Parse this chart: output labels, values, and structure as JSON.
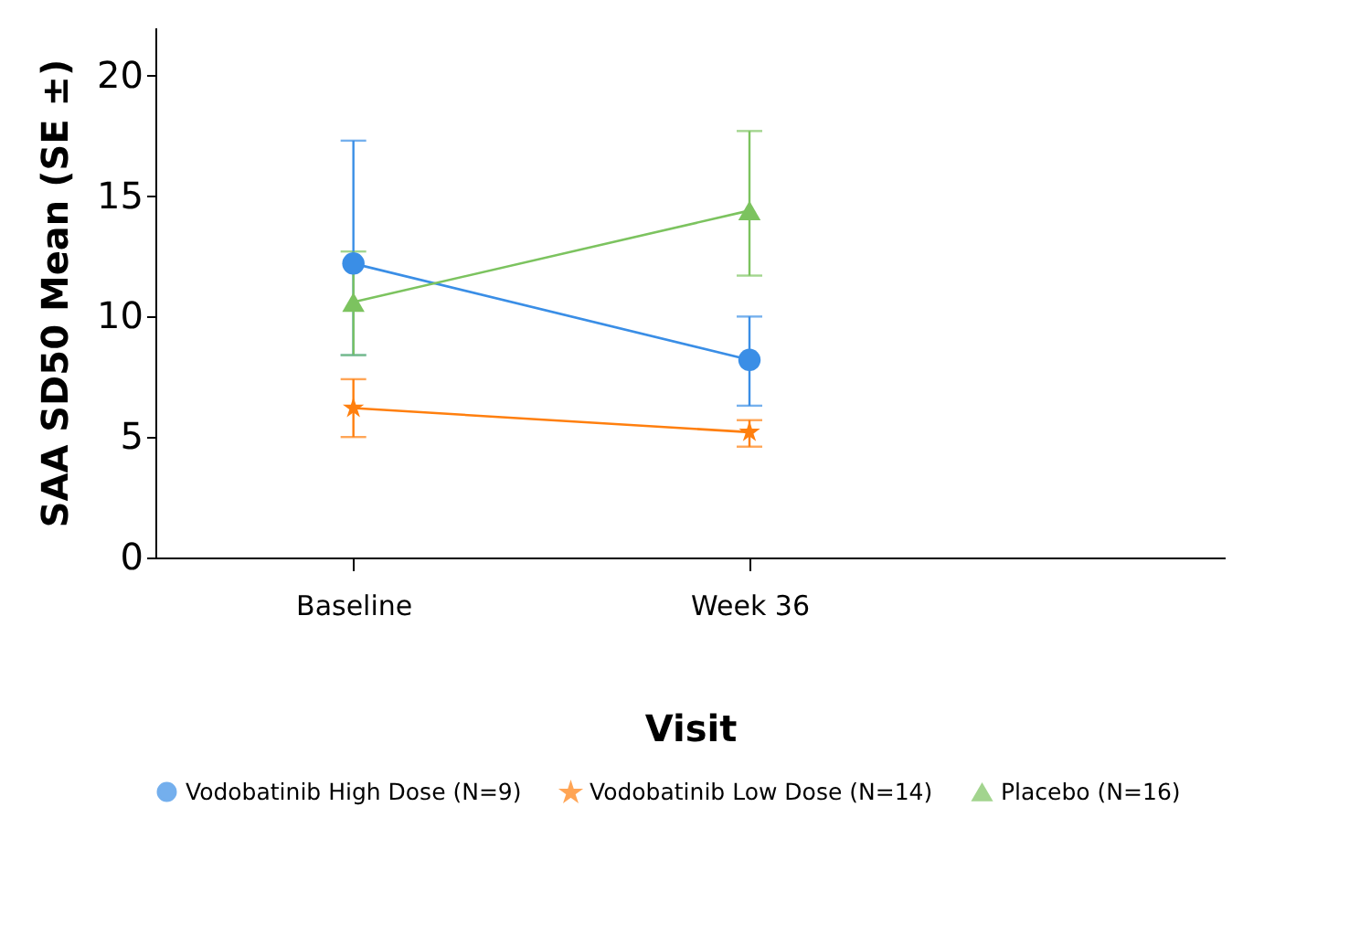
{
  "chart_data": {
    "type": "line",
    "xlabel": "Visit",
    "ylabel": "SAA SD50 Mean (SE ±)",
    "categories": [
      "Baseline",
      "Week 36"
    ],
    "series": [
      {
        "name": "Vodobatinib High Dose (N=9)",
        "color": "#3a8ee6",
        "marker": "circle",
        "values": [
          12.2,
          8.2
        ],
        "errors": [
          [
            8.4,
            17.3
          ],
          [
            6.3,
            10
          ]
        ]
      },
      {
        "name": "Vodobatinib Low Dose (N=14)",
        "color": "#ff7f0e",
        "marker": "star",
        "values": [
          6.2,
          5.2
        ],
        "errors": [
          [
            5,
            7.4
          ],
          [
            4.6,
            5.7
          ]
        ]
      },
      {
        "name": "Placebo (N=16)",
        "color": "#7cc35f",
        "marker": "triangle",
        "values": [
          10.6,
          14.4
        ],
        "errors": [
          [
            8.4,
            12.7
          ],
          [
            11.7,
            17.7
          ]
        ]
      }
    ],
    "ylim": [
      0,
      22
    ],
    "yticks": [
      0,
      5,
      10,
      15,
      20
    ],
    "grid": false,
    "legend": "bottom"
  }
}
